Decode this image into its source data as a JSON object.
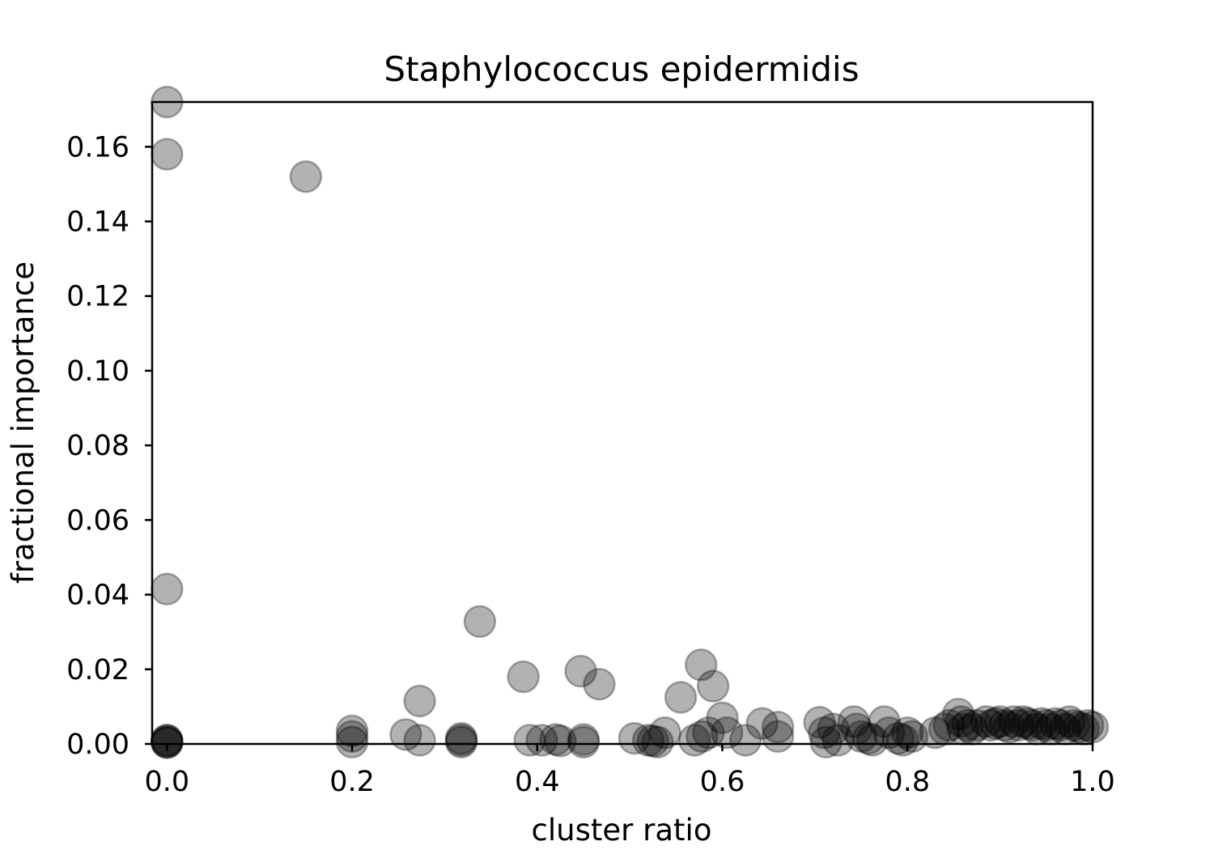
{
  "chart_data": {
    "type": "scatter",
    "title": "Staphylococcus epidermidis",
    "xlabel": "cluster ratio",
    "ylabel": "fractional importance",
    "xlim": [
      -0.016,
      1.0
    ],
    "ylim": [
      0.0,
      0.172
    ],
    "xticks": [
      0.0,
      0.2,
      0.4,
      0.6,
      0.8,
      1.0
    ],
    "xtick_labels": [
      "0.0",
      "0.2",
      "0.4",
      "0.6",
      "0.8",
      "1.0"
    ],
    "yticks": [
      0.0,
      0.02,
      0.04,
      0.06,
      0.08,
      0.1,
      0.12,
      0.14,
      0.16
    ],
    "ytick_labels": [
      "0.00",
      "0.02",
      "0.04",
      "0.06",
      "0.08",
      "0.10",
      "0.12",
      "0.14",
      "0.16"
    ],
    "grid": false,
    "marker_color": "#000000",
    "marker_opacity": 0.3,
    "points": [
      {
        "x": 0.0,
        "y": 0.172
      },
      {
        "x": 0.0,
        "y": 0.158
      },
      {
        "x": 0.0,
        "y": 0.0415
      },
      {
        "x": 0.0,
        "y": 0.001
      },
      {
        "x": 0.0,
        "y": 0.001
      },
      {
        "x": 0.0,
        "y": 0.0005
      },
      {
        "x": 0.0,
        "y": 0.0005
      },
      {
        "x": 0.0,
        "y": 0.0003
      },
      {
        "x": 0.15,
        "y": 0.152
      },
      {
        "x": 0.2,
        "y": 0.0035
      },
      {
        "x": 0.2,
        "y": 0.002
      },
      {
        "x": 0.2,
        "y": 0.0005
      },
      {
        "x": 0.258,
        "y": 0.0025
      },
      {
        "x": 0.273,
        "y": 0.0115
      },
      {
        "x": 0.273,
        "y": 0.001
      },
      {
        "x": 0.318,
        "y": 0.0015
      },
      {
        "x": 0.318,
        "y": 0.001
      },
      {
        "x": 0.318,
        "y": 0.0005
      },
      {
        "x": 0.338,
        "y": 0.0328
      },
      {
        "x": 0.385,
        "y": 0.018
      },
      {
        "x": 0.392,
        "y": 0.001
      },
      {
        "x": 0.405,
        "y": 0.001
      },
      {
        "x": 0.42,
        "y": 0.0012
      },
      {
        "x": 0.425,
        "y": 0.0008
      },
      {
        "x": 0.447,
        "y": 0.0195
      },
      {
        "x": 0.45,
        "y": 0.0012
      },
      {
        "x": 0.45,
        "y": 0.0005
      },
      {
        "x": 0.467,
        "y": 0.016
      },
      {
        "x": 0.505,
        "y": 0.0015
      },
      {
        "x": 0.52,
        "y": 0.001
      },
      {
        "x": 0.525,
        "y": 0.0008
      },
      {
        "x": 0.53,
        "y": 0.0005
      },
      {
        "x": 0.538,
        "y": 0.003
      },
      {
        "x": 0.555,
        "y": 0.0125
      },
      {
        "x": 0.57,
        "y": 0.001
      },
      {
        "x": 0.577,
        "y": 0.0212
      },
      {
        "x": 0.578,
        "y": 0.002
      },
      {
        "x": 0.585,
        "y": 0.003
      },
      {
        "x": 0.59,
        "y": 0.0155
      },
      {
        "x": 0.6,
        "y": 0.007
      },
      {
        "x": 0.605,
        "y": 0.003
      },
      {
        "x": 0.625,
        "y": 0.001
      },
      {
        "x": 0.643,
        "y": 0.0055
      },
      {
        "x": 0.66,
        "y": 0.0045
      },
      {
        "x": 0.66,
        "y": 0.002
      },
      {
        "x": 0.705,
        "y": 0.0058
      },
      {
        "x": 0.71,
        "y": 0.003
      },
      {
        "x": 0.712,
        "y": 0.0005
      },
      {
        "x": 0.72,
        "y": 0.004
      },
      {
        "x": 0.725,
        "y": 0.001
      },
      {
        "x": 0.742,
        "y": 0.006
      },
      {
        "x": 0.745,
        "y": 0.004
      },
      {
        "x": 0.75,
        "y": 0.002
      },
      {
        "x": 0.758,
        "y": 0.0015
      },
      {
        "x": 0.762,
        "y": 0.001
      },
      {
        "x": 0.775,
        "y": 0.006
      },
      {
        "x": 0.78,
        "y": 0.003
      },
      {
        "x": 0.79,
        "y": 0.0015
      },
      {
        "x": 0.795,
        "y": 0.001
      },
      {
        "x": 0.8,
        "y": 0.003
      },
      {
        "x": 0.805,
        "y": 0.002
      },
      {
        "x": 0.83,
        "y": 0.003
      },
      {
        "x": 0.84,
        "y": 0.004
      },
      {
        "x": 0.845,
        "y": 0.005
      },
      {
        "x": 0.855,
        "y": 0.008
      },
      {
        "x": 0.858,
        "y": 0.006
      },
      {
        "x": 0.86,
        "y": 0.004
      },
      {
        "x": 0.865,
        "y": 0.005
      },
      {
        "x": 0.87,
        "y": 0.004
      },
      {
        "x": 0.875,
        "y": 0.005
      },
      {
        "x": 0.885,
        "y": 0.006
      },
      {
        "x": 0.89,
        "y": 0.005
      },
      {
        "x": 0.895,
        "y": 0.0055
      },
      {
        "x": 0.9,
        "y": 0.006
      },
      {
        "x": 0.905,
        "y": 0.005
      },
      {
        "x": 0.91,
        "y": 0.0045
      },
      {
        "x": 0.915,
        "y": 0.006
      },
      {
        "x": 0.92,
        "y": 0.005
      },
      {
        "x": 0.925,
        "y": 0.006
      },
      {
        "x": 0.93,
        "y": 0.0055
      },
      {
        "x": 0.935,
        "y": 0.005
      },
      {
        "x": 0.94,
        "y": 0.004
      },
      {
        "x": 0.945,
        "y": 0.0055
      },
      {
        "x": 0.95,
        "y": 0.005
      },
      {
        "x": 0.955,
        "y": 0.004
      },
      {
        "x": 0.96,
        "y": 0.0055
      },
      {
        "x": 0.965,
        "y": 0.005
      },
      {
        "x": 0.97,
        "y": 0.004
      },
      {
        "x": 0.975,
        "y": 0.006
      },
      {
        "x": 0.98,
        "y": 0.005
      },
      {
        "x": 0.985,
        "y": 0.0045
      },
      {
        "x": 0.99,
        "y": 0.004
      },
      {
        "x": 0.995,
        "y": 0.005
      },
      {
        "x": 1.0,
        "y": 0.0045
      }
    ]
  }
}
